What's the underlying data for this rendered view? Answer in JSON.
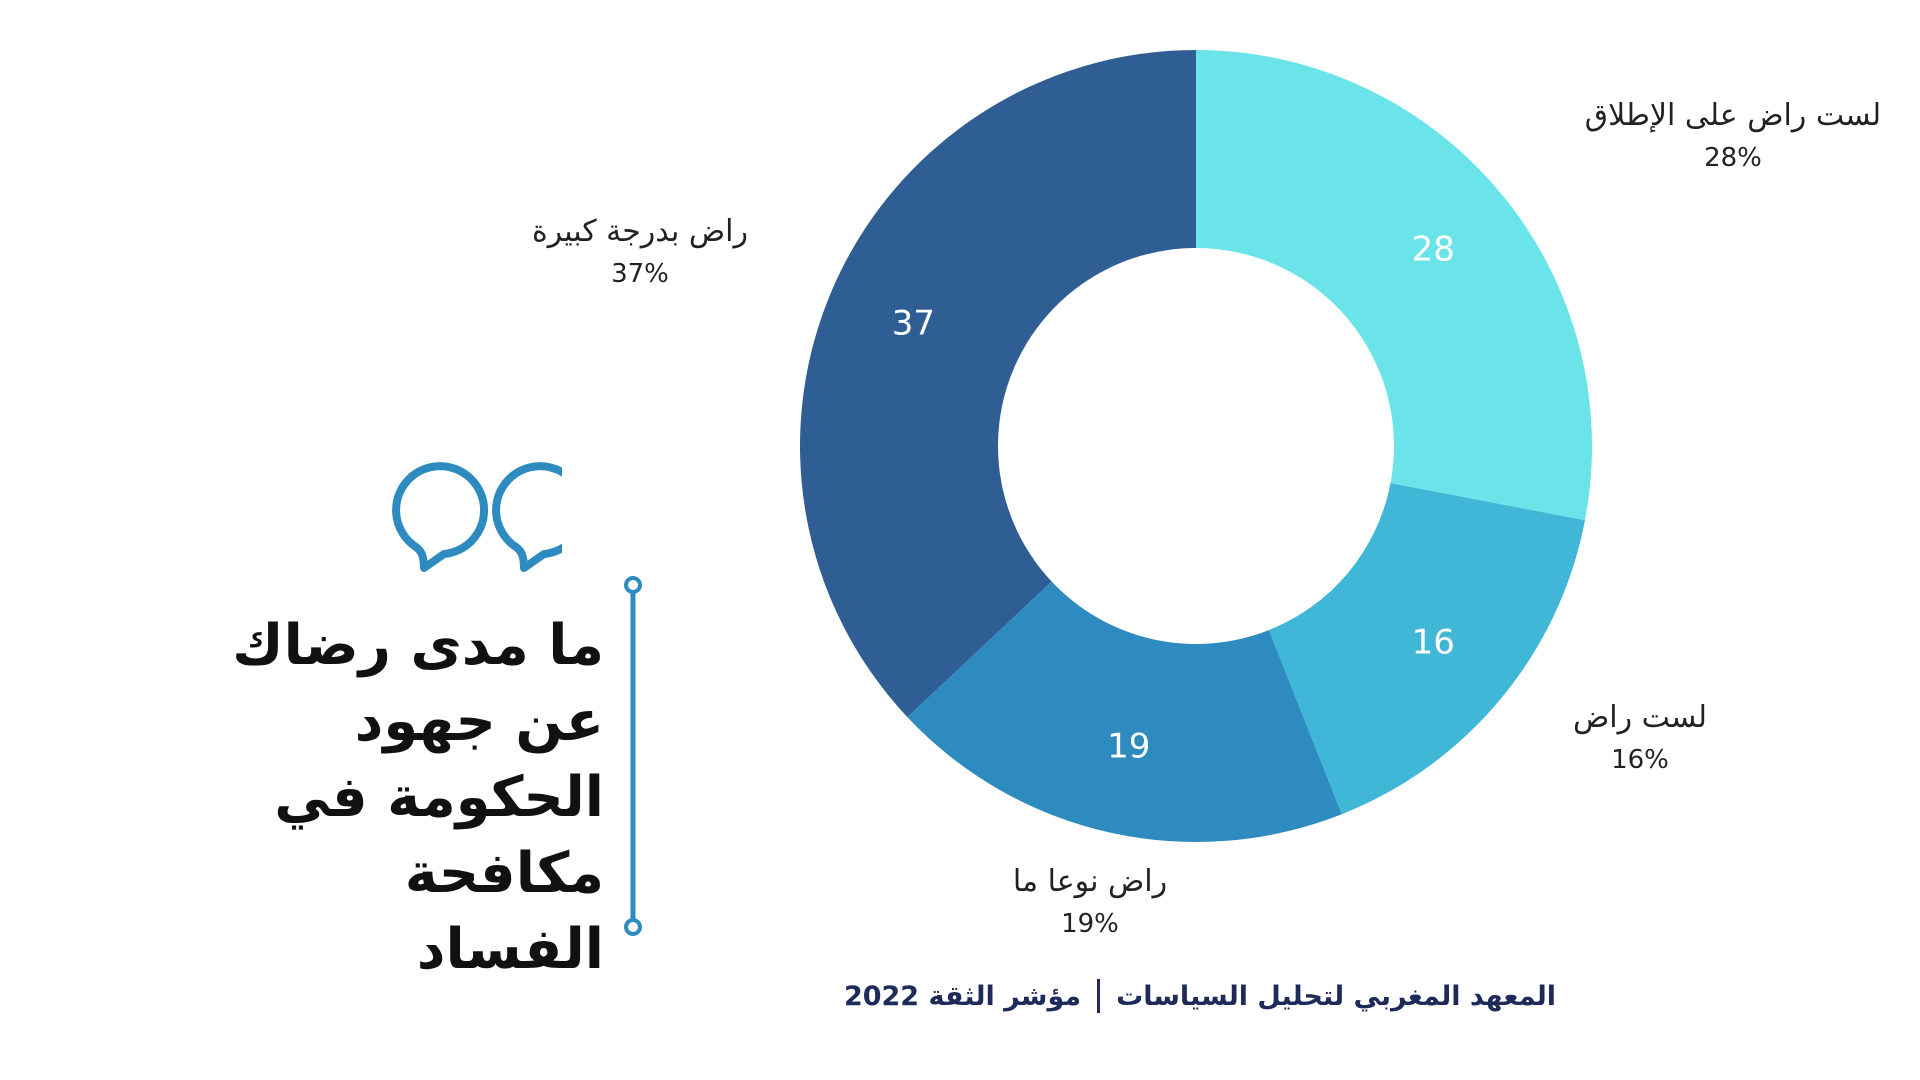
{
  "title": "ما مدى رضاك\nعن جهود\nالحكومة في\nمكافحة الفساد",
  "footer": {
    "institute": "المعهد المغربي لتحليل السياسات",
    "index": "مؤشر الثقة 2022"
  },
  "decor": {
    "quote_icon": "quote-icon",
    "accent_color": "#2e8bbf"
  },
  "chart_data": {
    "type": "pie",
    "donut": true,
    "categories": [
      "لست راض على الإطلاق",
      "لست راض",
      "راض نوعا ما",
      "راض بدرجة كبيرة"
    ],
    "values": [
      28,
      16,
      19,
      37
    ],
    "percent_labels": [
      "28%",
      "16%",
      "19%",
      "37%"
    ],
    "value_labels": [
      "28",
      "16",
      "19",
      "37"
    ],
    "colors": [
      "#6ae4e9",
      "#41b7d7",
      "#2e8bbf",
      "#2f5e95"
    ],
    "title": "",
    "legend": "none"
  }
}
